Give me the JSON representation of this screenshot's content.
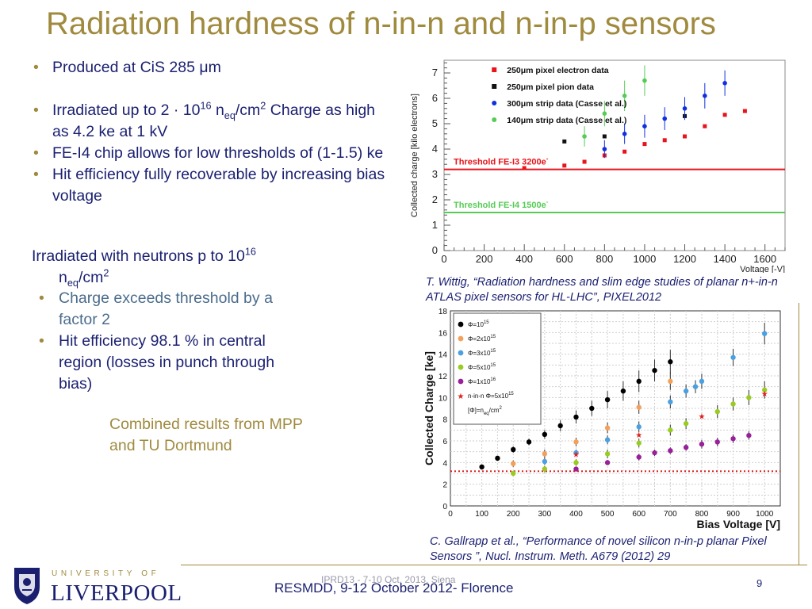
{
  "slide": {
    "title": "Radiation hardness of n-in-n and n-in-p sensors",
    "bullets_top": [
      "Produced at CiS 285 μm",
      "FE-I4 chip allows for low thresholds of (1-1.5) ke",
      "Hit efficiency fully recoverable by increasing bias voltage"
    ],
    "irradiated_bullet": {
      "prefix": "Irradiated up to 2 · 10",
      "exp": "16",
      "n": " n",
      "sub": "eq",
      "unit": "/cm",
      "unit_exp": "2",
      "suffix": " Charge as high as 4.2 ke at 1 kV"
    },
    "neutron_heading": {
      "prefix": "Irradiated with neutrons p to 10",
      "exp": "16",
      "n": "n",
      "sub": "eq",
      "unit": "/cm",
      "unit_exp": "2"
    },
    "bullets_neutron": [
      "Charge exceeds threshold by a factor 2",
      "Hit efficiency 98.1 % in central region (losses in punch through bias)"
    ],
    "combined_note": "Combined results from MPP and TU Dortmund",
    "caption1": "T. Wittig, “Radiation hardness and slim edge studies of planar n+-in-n ATLAS pixel sensors for HL-LHC”, PIXEL2012",
    "caption2": "C. Gallrapp et al., “Performance of novel silicon n-in-p planar Pixel Sensors ”, Nucl. Instrum. Meth. A679 (2012) 29",
    "footer_conference": "RESMDD, 9-12 October 2012- Florence",
    "footer_overlay": "IPRD13 - 7-10 Oct. 2013, Siena",
    "page_number": "9",
    "logo": {
      "line1": "UNIVERSITY OF",
      "line2": "LIVERPOOL"
    }
  },
  "chart_data": [
    {
      "type": "scatter",
      "xlabel": "Voltage [-V]",
      "ylabel": "Collected charge [kilo electrons]",
      "xlim": [
        0,
        1700
      ],
      "ylim": [
        0,
        7.5
      ],
      "xticks": [
        0,
        200,
        400,
        600,
        800,
        1000,
        1200,
        1400,
        1600
      ],
      "yticks": [
        0,
        1,
        2,
        3,
        4,
        5,
        6,
        7
      ],
      "legend_position": "top-right",
      "series": [
        {
          "name": "250μm pixel electron data",
          "color": "#e8131b",
          "marker": "square",
          "x": [
            400,
            600,
            700,
            800,
            900,
            1000,
            1100,
            1200,
            1300,
            1400,
            1500
          ],
          "y": [
            3.25,
            3.35,
            3.5,
            3.75,
            3.9,
            4.2,
            4.35,
            4.5,
            4.9,
            5.35,
            5.5
          ],
          "err": []
        },
        {
          "name": "250μm pixel pion data",
          "color": "#111111",
          "marker": "square",
          "x": [
            600,
            800,
            1200
          ],
          "y": [
            4.3,
            4.5,
            5.3
          ],
          "err": []
        },
        {
          "name": "300μm strip data (Casse et al.)",
          "color": "#1030e0",
          "marker": "circle",
          "x": [
            800,
            900,
            1000,
            1100,
            1200,
            1300,
            1400
          ],
          "y": [
            4.0,
            4.6,
            4.9,
            5.2,
            5.6,
            6.1,
            6.6
          ],
          "err": [
            0.35,
            0.4,
            0.45,
            0.45,
            0.45,
            0.5,
            0.5
          ]
        },
        {
          "name": "140μm strip data (Casse et al.)",
          "color": "#55cc55",
          "marker": "circle",
          "x": [
            700,
            800,
            900,
            1000
          ],
          "y": [
            4.5,
            5.4,
            6.1,
            6.7
          ],
          "err": [
            0.4,
            0.5,
            0.6,
            0.6
          ]
        }
      ],
      "thresholds": [
        {
          "label": "Threshold FE-I3 3200e",
          "value": 3.2,
          "color": "#e8131b"
        },
        {
          "label": "Threshold FE-I4 1500e",
          "value": 1.5,
          "color": "#55cc55"
        }
      ]
    },
    {
      "type": "scatter",
      "xlabel": "Bias Voltage [V]",
      "ylabel": "Collected Charge [ke]",
      "xlim": [
        0,
        1050
      ],
      "ylim": [
        0,
        18
      ],
      "xticks": [
        0,
        100,
        200,
        300,
        400,
        500,
        600,
        700,
        800,
        900,
        1000
      ],
      "yticks": [
        0,
        2,
        4,
        6,
        8,
        10,
        12,
        14,
        16,
        18
      ],
      "legend_position": "top-left",
      "legend_footer": "[Φ]=n",
      "legend_footer_sub": "eq",
      "legend_footer_unit": "/cm",
      "legend_footer_unit_exp": "2",
      "series": [
        {
          "name": "Φ=10",
          "exp": "15",
          "color": "#000000",
          "marker": "circle",
          "x": [
            100,
            150,
            200,
            250,
            300,
            350,
            400,
            450,
            500,
            550,
            600,
            650,
            700
          ],
          "y": [
            3.6,
            4.4,
            5.2,
            5.9,
            6.6,
            7.4,
            8.2,
            9.0,
            9.8,
            10.6,
            11.5,
            12.5,
            13.3
          ],
          "err": [
            0.2,
            0.2,
            0.3,
            0.3,
            0.4,
            0.5,
            0.6,
            0.7,
            0.8,
            0.9,
            1.0,
            1.0,
            1.1
          ]
        },
        {
          "name": "Φ=2x10",
          "exp": "15",
          "color": "#f5a05a",
          "marker": "circle",
          "x": [
            200,
            300,
            400,
            500,
            600,
            700
          ],
          "y": [
            3.9,
            4.8,
            5.9,
            7.2,
            9.1,
            11.5
          ],
          "err": [
            0.3,
            0.4,
            0.4,
            0.5,
            0.6,
            0.8
          ]
        },
        {
          "name": "Φ=3x10",
          "exp": "15",
          "color": "#4aa0e0",
          "marker": "circle",
          "x": [
            300,
            400,
            500,
            600,
            700,
            750,
            780,
            800,
            900,
            1000
          ],
          "y": [
            4.1,
            4.9,
            6.1,
            7.3,
            9.6,
            10.6,
            11.0,
            11.5,
            13.7,
            15.9
          ],
          "err": [
            0.3,
            0.3,
            0.4,
            0.5,
            0.6,
            0.6,
            0.6,
            0.7,
            0.8,
            1.0
          ]
        },
        {
          "name": "Φ=5x10",
          "exp": "15",
          "color": "#99cc22",
          "marker": "circle",
          "x": [
            200,
            300,
            400,
            500,
            600,
            700,
            750,
            850,
            900,
            950,
            1000
          ],
          "y": [
            3.0,
            3.4,
            4.0,
            4.8,
            5.8,
            7.0,
            7.6,
            8.7,
            9.4,
            10.0,
            10.7
          ],
          "err": [
            0.2,
            0.3,
            0.3,
            0.4,
            0.4,
            0.5,
            0.5,
            0.6,
            0.6,
            0.7,
            0.8
          ]
        },
        {
          "name": "Φ=1x10",
          "exp": "16",
          "color": "#9a1f9a",
          "marker": "circle",
          "x": [
            400,
            500,
            600,
            650,
            700,
            750,
            800,
            850,
            900,
            950
          ],
          "y": [
            3.4,
            4.0,
            4.5,
            4.9,
            5.1,
            5.4,
            5.7,
            5.9,
            6.2,
            6.5
          ],
          "err": [
            0.2,
            0.2,
            0.3,
            0.3,
            0.3,
            0.3,
            0.4,
            0.4,
            0.4,
            0.4
          ]
        },
        {
          "name": "n-in-n Φ=5x10",
          "exp": "15",
          "color": "#e02020",
          "marker": "star",
          "x": [
            400,
            600,
            800,
            1000
          ],
          "y": [
            4.8,
            6.6,
            8.3,
            10.4
          ],
          "err": []
        }
      ],
      "thresholds": [
        {
          "label": "",
          "value": 3.2,
          "color": "#e02020",
          "dashed": true
        }
      ]
    }
  ]
}
